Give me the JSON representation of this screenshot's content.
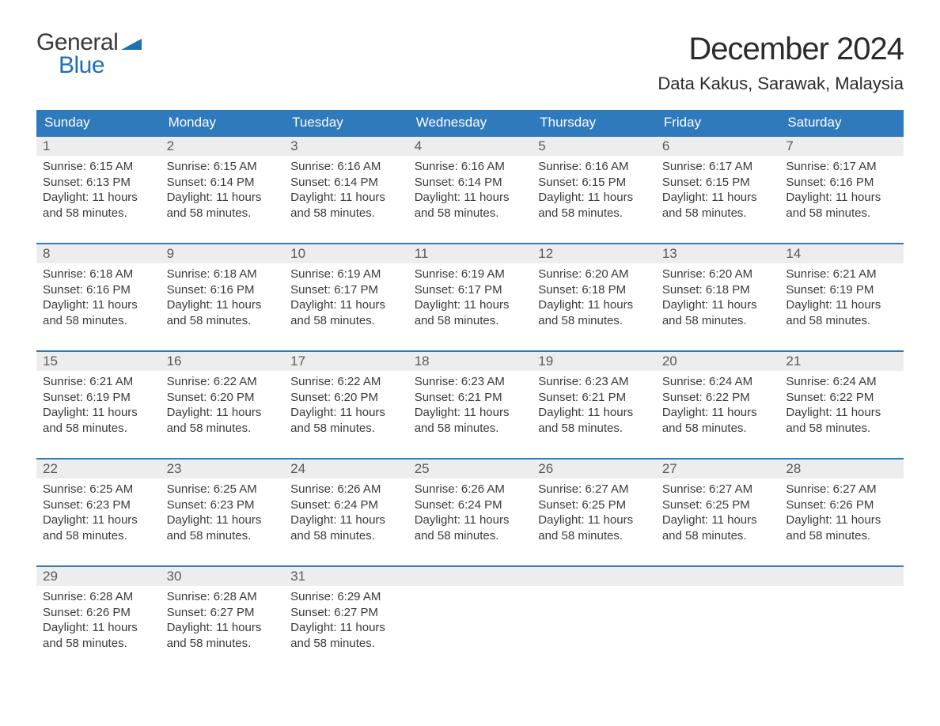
{
  "brand": {
    "word1": "General",
    "word2": "Blue",
    "word1_color": "#3a3a3a",
    "word2_color": "#1f6fb5",
    "flag_color": "#1f6fb5"
  },
  "title": "December 2024",
  "location": "Data Kakus, Sarawak, Malaysia",
  "colors": {
    "header_bg": "#2f79bd",
    "header_text": "#ffffff",
    "week_border": "#2f79bd",
    "daynum_bg": "#ededed",
    "daynum_text": "#5a5a5a",
    "body_text": "#3a3a3a",
    "page_bg": "#ffffff"
  },
  "day_headers": [
    "Sunday",
    "Monday",
    "Tuesday",
    "Wednesday",
    "Thursday",
    "Friday",
    "Saturday"
  ],
  "labels": {
    "sunrise": "Sunrise",
    "sunset": "Sunset",
    "daylight": "Daylight"
  },
  "daylight_text": "11 hours and 58 minutes.",
  "weeks": [
    [
      {
        "n": "1",
        "rise": "6:15 AM",
        "set": "6:13 PM"
      },
      {
        "n": "2",
        "rise": "6:15 AM",
        "set": "6:14 PM"
      },
      {
        "n": "3",
        "rise": "6:16 AM",
        "set": "6:14 PM"
      },
      {
        "n": "4",
        "rise": "6:16 AM",
        "set": "6:14 PM"
      },
      {
        "n": "5",
        "rise": "6:16 AM",
        "set": "6:15 PM"
      },
      {
        "n": "6",
        "rise": "6:17 AM",
        "set": "6:15 PM"
      },
      {
        "n": "7",
        "rise": "6:17 AM",
        "set": "6:16 PM"
      }
    ],
    [
      {
        "n": "8",
        "rise": "6:18 AM",
        "set": "6:16 PM"
      },
      {
        "n": "9",
        "rise": "6:18 AM",
        "set": "6:16 PM"
      },
      {
        "n": "10",
        "rise": "6:19 AM",
        "set": "6:17 PM"
      },
      {
        "n": "11",
        "rise": "6:19 AM",
        "set": "6:17 PM"
      },
      {
        "n": "12",
        "rise": "6:20 AM",
        "set": "6:18 PM"
      },
      {
        "n": "13",
        "rise": "6:20 AM",
        "set": "6:18 PM"
      },
      {
        "n": "14",
        "rise": "6:21 AM",
        "set": "6:19 PM"
      }
    ],
    [
      {
        "n": "15",
        "rise": "6:21 AM",
        "set": "6:19 PM"
      },
      {
        "n": "16",
        "rise": "6:22 AM",
        "set": "6:20 PM"
      },
      {
        "n": "17",
        "rise": "6:22 AM",
        "set": "6:20 PM"
      },
      {
        "n": "18",
        "rise": "6:23 AM",
        "set": "6:21 PM"
      },
      {
        "n": "19",
        "rise": "6:23 AM",
        "set": "6:21 PM"
      },
      {
        "n": "20",
        "rise": "6:24 AM",
        "set": "6:22 PM"
      },
      {
        "n": "21",
        "rise": "6:24 AM",
        "set": "6:22 PM"
      }
    ],
    [
      {
        "n": "22",
        "rise": "6:25 AM",
        "set": "6:23 PM"
      },
      {
        "n": "23",
        "rise": "6:25 AM",
        "set": "6:23 PM"
      },
      {
        "n": "24",
        "rise": "6:26 AM",
        "set": "6:24 PM"
      },
      {
        "n": "25",
        "rise": "6:26 AM",
        "set": "6:24 PM"
      },
      {
        "n": "26",
        "rise": "6:27 AM",
        "set": "6:25 PM"
      },
      {
        "n": "27",
        "rise": "6:27 AM",
        "set": "6:25 PM"
      },
      {
        "n": "28",
        "rise": "6:27 AM",
        "set": "6:26 PM"
      }
    ],
    [
      {
        "n": "29",
        "rise": "6:28 AM",
        "set": "6:26 PM"
      },
      {
        "n": "30",
        "rise": "6:28 AM",
        "set": "6:27 PM"
      },
      {
        "n": "31",
        "rise": "6:29 AM",
        "set": "6:27 PM"
      },
      null,
      null,
      null,
      null
    ]
  ]
}
